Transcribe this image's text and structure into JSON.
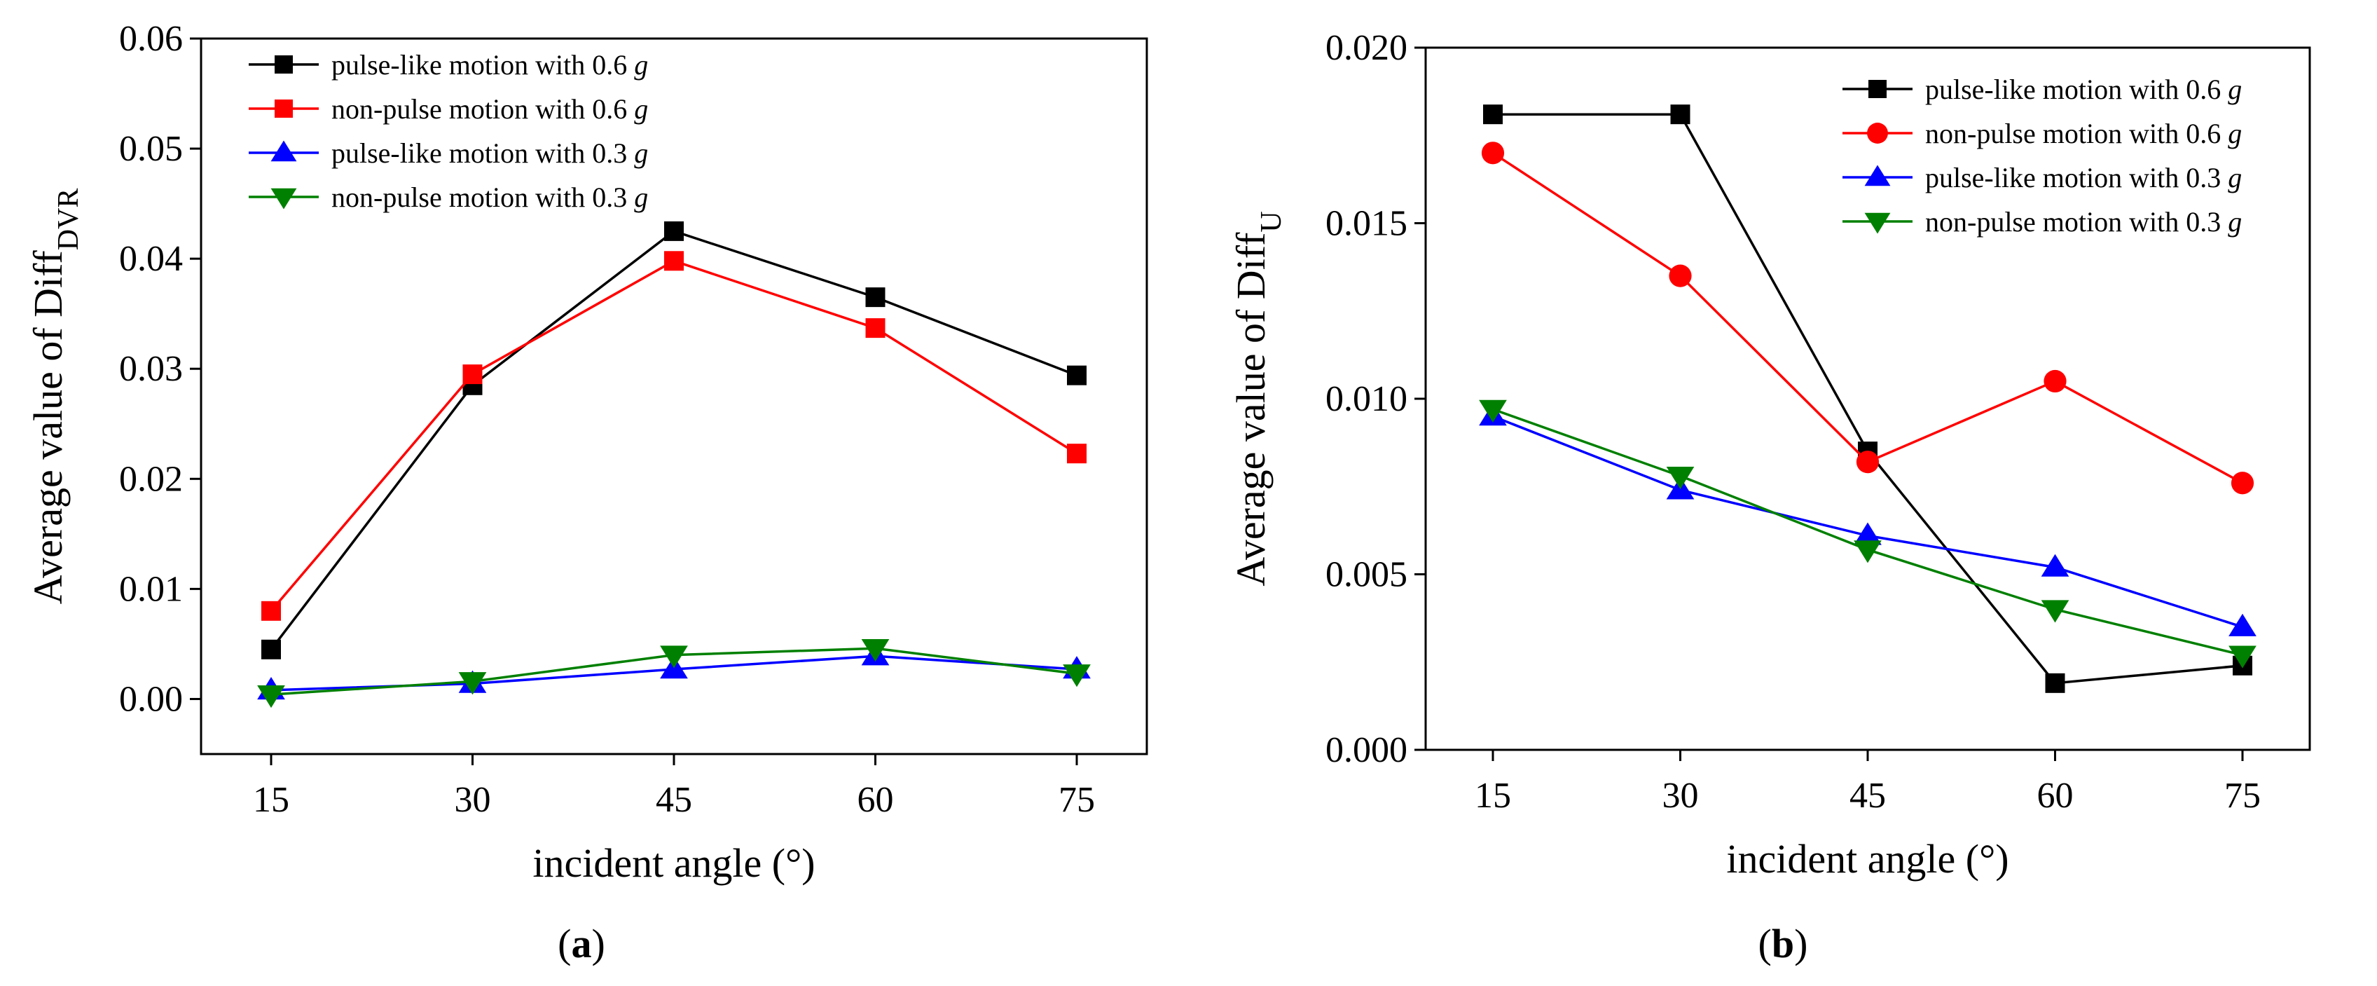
{
  "chart_data": [
    {
      "type": "line",
      "panel_label": "(a)",
      "xlabel": "incident angle (°)",
      "ylabel": {
        "main": "Average value of Diff",
        "subscript": "DVR"
      },
      "x": [
        15,
        30,
        45,
        60,
        75
      ],
      "ylim": [
        -0.005,
        0.06
      ],
      "yticks": [
        "0.00",
        "0.01",
        "0.02",
        "0.03",
        "0.04",
        "0.05",
        "0.06"
      ],
      "xticks": [
        "15",
        "30",
        "45",
        "60",
        "75"
      ],
      "legend_position": "top-left",
      "series": [
        {
          "name": "pulse-like motion with 0.6 g",
          "label_text": "pulse-like motion with 0.6 ",
          "label_unit": "g",
          "color": "#000000",
          "marker": "square",
          "values": [
            0.0045,
            0.0285,
            0.0425,
            0.0365,
            0.0294
          ]
        },
        {
          "name": "non-pulse motion with 0.6 g",
          "label_text": "non-pulse motion with 0.6 ",
          "label_unit": "g",
          "color": "#ff0000",
          "marker": "square",
          "values": [
            0.008,
            0.0295,
            0.0398,
            0.0337,
            0.0223
          ]
        },
        {
          "name": "pulse-like motion with 0.3 g",
          "label_text": "pulse-like motion with 0.3 ",
          "label_unit": "g",
          "color": "#0000ff",
          "marker": "triangle-up",
          "values": [
            0.0008,
            0.0014,
            0.0027,
            0.0039,
            0.0027
          ]
        },
        {
          "name": "non-pulse motion with 0.3 g",
          "label_text": "non-pulse motion with 0.3 ",
          "label_unit": "g",
          "color": "#008000",
          "marker": "triangle-down",
          "values": [
            0.0004,
            0.0016,
            0.004,
            0.0046,
            0.0023
          ]
        }
      ]
    },
    {
      "type": "line",
      "panel_label": "(b)",
      "xlabel": "incident angle (°)",
      "ylabel": {
        "main": "Average value of Diff",
        "subscript": "U"
      },
      "x": [
        15,
        30,
        45,
        60,
        75
      ],
      "ylim": [
        0,
        0.02
      ],
      "yticks": [
        "0.000",
        "0.005",
        "0.010",
        "0.015",
        "0.020"
      ],
      "xticks": [
        "15",
        "30",
        "45",
        "60",
        "75"
      ],
      "legend_position": "top-right",
      "series": [
        {
          "name": "pulse-like motion with 0.6 g",
          "label_text": "pulse-like motion with 0.6 ",
          "label_unit": "g",
          "color": "#000000",
          "marker": "square",
          "values": [
            0.0181,
            0.0181,
            0.0085,
            0.0019,
            0.0024
          ]
        },
        {
          "name": "non-pulse motion with 0.6 g",
          "label_text": "non-pulse motion with 0.6 ",
          "label_unit": "g",
          "color": "#ff0000",
          "marker": "circle",
          "values": [
            0.017,
            0.0135,
            0.0082,
            0.0105,
            0.0076
          ]
        },
        {
          "name": "pulse-like motion with 0.3 g",
          "label_text": "pulse-like motion with 0.3 ",
          "label_unit": "g",
          "color": "#0000ff",
          "marker": "triangle-up",
          "values": [
            0.0095,
            0.0074,
            0.0061,
            0.0052,
            0.0035
          ]
        },
        {
          "name": "non-pulse motion with 0.3 g",
          "label_text": "non-pulse motion with 0.3 ",
          "label_unit": "g",
          "color": "#008000",
          "marker": "triangle-down",
          "values": [
            0.0097,
            0.0078,
            0.0057,
            0.004,
            0.0027
          ]
        }
      ]
    }
  ]
}
